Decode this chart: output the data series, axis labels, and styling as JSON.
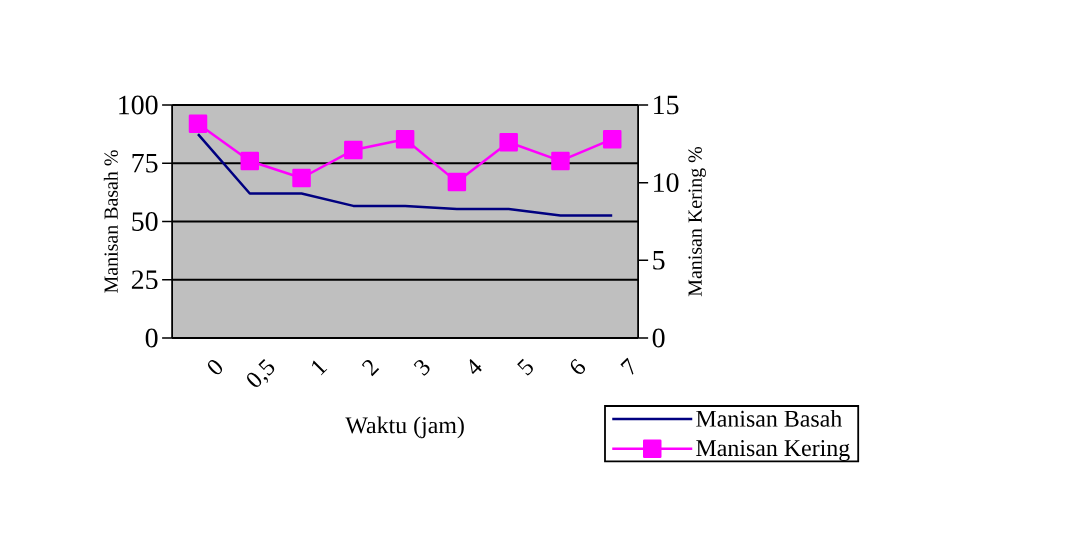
{
  "chart_data": {
    "type": "line",
    "xlabel": "Waktu (jam)",
    "ylabel": "Manisan Basah %",
    "y2label": "Manisan Kering %",
    "categories": [
      "0",
      "0,5",
      "1",
      "2",
      "3",
      "4",
      "5",
      "6",
      "7"
    ],
    "series": [
      {
        "name": "Manisan Basah",
        "color": "#000080",
        "marker": "none",
        "values": [
          87.5,
          62,
          62,
          56.7,
          56.7,
          55.4,
          55.4,
          52.6,
          52.6
        ]
      },
      {
        "name": "Manisan Kering",
        "color": "#ff00ff",
        "marker": "square",
        "axis": "y2",
        "values": [
          13.8,
          11.4,
          10.3,
          12.1,
          12.8,
          10.05,
          12.6,
          11.4,
          12.8
        ]
      }
    ],
    "ylim": [
      0,
      100
    ],
    "yticks": [
      0,
      25,
      50,
      75,
      100
    ],
    "y2lim": [
      0,
      15
    ],
    "y2ticks": [
      0,
      5,
      10,
      15
    ],
    "grid": "y",
    "legend": "bottom right"
  }
}
